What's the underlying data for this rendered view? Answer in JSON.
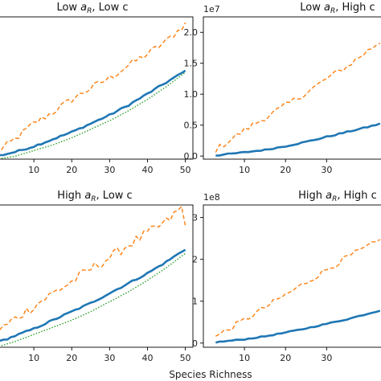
{
  "figure": {
    "xlabel": "Species Richness"
  },
  "chart_data": [
    {
      "type": "line",
      "title": "Low a_R, Low c",
      "title_parts": [
        "Low ",
        "a",
        "R",
        ", Low c"
      ],
      "xlim": [
        0,
        52
      ],
      "ylim": [
        0,
        1
      ],
      "x_ticks": [
        10,
        20,
        30,
        40,
        50
      ],
      "y_ticks": [],
      "y_tick_labels": [],
      "exponent_label": "",
      "series": [
        {
          "style": "dashed",
          "color": "#ff7f0e",
          "x": [
            0,
            5,
            10,
            15,
            20,
            25,
            30,
            35,
            40,
            45,
            50
          ],
          "y": [
            0.04,
            0.14,
            0.25,
            0.33,
            0.42,
            0.5,
            0.57,
            0.66,
            0.74,
            0.83,
            0.95
          ],
          "noise": 0.025
        },
        {
          "style": "solid",
          "color": "#1f77b4",
          "x": [
            0,
            5,
            10,
            15,
            20,
            25,
            30,
            35,
            40,
            45,
            50
          ],
          "y": [
            0.02,
            0.05,
            0.09,
            0.14,
            0.19,
            0.25,
            0.31,
            0.38,
            0.46,
            0.54,
            0.62
          ],
          "noise": 0.006
        },
        {
          "style": "dotted",
          "color": "#2ca02c",
          "x": [
            0,
            5,
            10,
            15,
            20,
            25,
            30,
            35,
            40,
            45,
            50
          ],
          "y": [
            0.0,
            0.02,
            0.06,
            0.1,
            0.15,
            0.21,
            0.27,
            0.34,
            0.42,
            0.51,
            0.61
          ],
          "noise": 0
        }
      ]
    },
    {
      "type": "line",
      "title": "Low a_R, High c",
      "title_parts": [
        "Low ",
        "a",
        "R",
        ", High c"
      ],
      "xlim": [
        0,
        45
      ],
      "ylim": [
        -0.05,
        2.25
      ],
      "x_ticks": [
        10,
        20,
        30
      ],
      "y_ticks": [
        0.0,
        0.5,
        1.0,
        1.5,
        2.0
      ],
      "y_tick_labels": [
        "0.0",
        "0.5",
        "1.0",
        "1.5",
        "2.0"
      ],
      "exponent_label": "1e7",
      "series": [
        {
          "style": "dashed",
          "color": "#ff7f0e",
          "x": [
            3,
            10,
            15,
            20,
            25,
            30,
            35,
            40,
            43
          ],
          "y": [
            0.1,
            0.42,
            0.62,
            0.82,
            1.02,
            1.25,
            1.45,
            1.7,
            1.85
          ],
          "noise": 0.05
        },
        {
          "style": "solid",
          "color": "#1f77b4",
          "x": [
            3,
            10,
            15,
            20,
            25,
            30,
            35,
            40,
            43
          ],
          "y": [
            0.01,
            0.06,
            0.1,
            0.16,
            0.23,
            0.31,
            0.39,
            0.47,
            0.52
          ],
          "noise": 0.01
        }
      ]
    },
    {
      "type": "line",
      "title": "High a_R, Low c",
      "title_parts": [
        "High ",
        "a",
        "R",
        ", Low c"
      ],
      "xlim": [
        0,
        52
      ],
      "ylim": [
        0,
        1
      ],
      "x_ticks": [
        10,
        20,
        30,
        40,
        50
      ],
      "y_ticks": [],
      "y_tick_labels": [],
      "exponent_label": "",
      "series": [
        {
          "style": "dashed",
          "color": "#ff7f0e",
          "x": [
            0,
            5,
            10,
            15,
            20,
            25,
            30,
            35,
            40,
            45,
            49,
            50
          ],
          "y": [
            0.1,
            0.2,
            0.29,
            0.38,
            0.46,
            0.55,
            0.63,
            0.72,
            0.8,
            0.88,
            0.98,
            0.85
          ],
          "noise": 0.035
        },
        {
          "style": "solid",
          "color": "#1f77b4",
          "x": [
            0,
            5,
            10,
            15,
            20,
            25,
            30,
            35,
            40,
            45,
            50
          ],
          "y": [
            0.03,
            0.08,
            0.13,
            0.19,
            0.25,
            0.31,
            0.38,
            0.45,
            0.52,
            0.6,
            0.69
          ],
          "noise": 0.006
        },
        {
          "style": "dotted",
          "color": "#2ca02c",
          "x": [
            0,
            5,
            10,
            15,
            20,
            25,
            30,
            35,
            40,
            45,
            50
          ],
          "y": [
            0.0,
            0.04,
            0.09,
            0.14,
            0.19,
            0.25,
            0.32,
            0.39,
            0.47,
            0.56,
            0.66
          ],
          "noise": 0
        }
      ]
    },
    {
      "type": "line",
      "title": "High a_R, High c",
      "title_parts": [
        "High ",
        "a",
        "R",
        ", High c"
      ],
      "xlim": [
        0,
        45
      ],
      "ylim": [
        -0.1,
        3.3
      ],
      "x_ticks": [
        10,
        20,
        30
      ],
      "y_ticks": [
        0,
        1,
        2,
        3
      ],
      "y_tick_labels": [
        "0",
        "1",
        "2",
        "3"
      ],
      "exponent_label": "1e8",
      "series": [
        {
          "style": "dashed",
          "color": "#ff7f0e",
          "x": [
            3,
            10,
            15,
            20,
            25,
            30,
            35,
            40,
            43
          ],
          "y": [
            0.15,
            0.55,
            0.85,
            1.15,
            1.45,
            1.75,
            2.05,
            2.3,
            2.45
          ],
          "noise": 0.07
        },
        {
          "style": "solid",
          "color": "#1f77b4",
          "x": [
            3,
            10,
            15,
            20,
            25,
            30,
            35,
            40,
            43
          ],
          "y": [
            0.02,
            0.09,
            0.16,
            0.25,
            0.35,
            0.46,
            0.57,
            0.7,
            0.78
          ],
          "noise": 0.012
        }
      ]
    }
  ]
}
